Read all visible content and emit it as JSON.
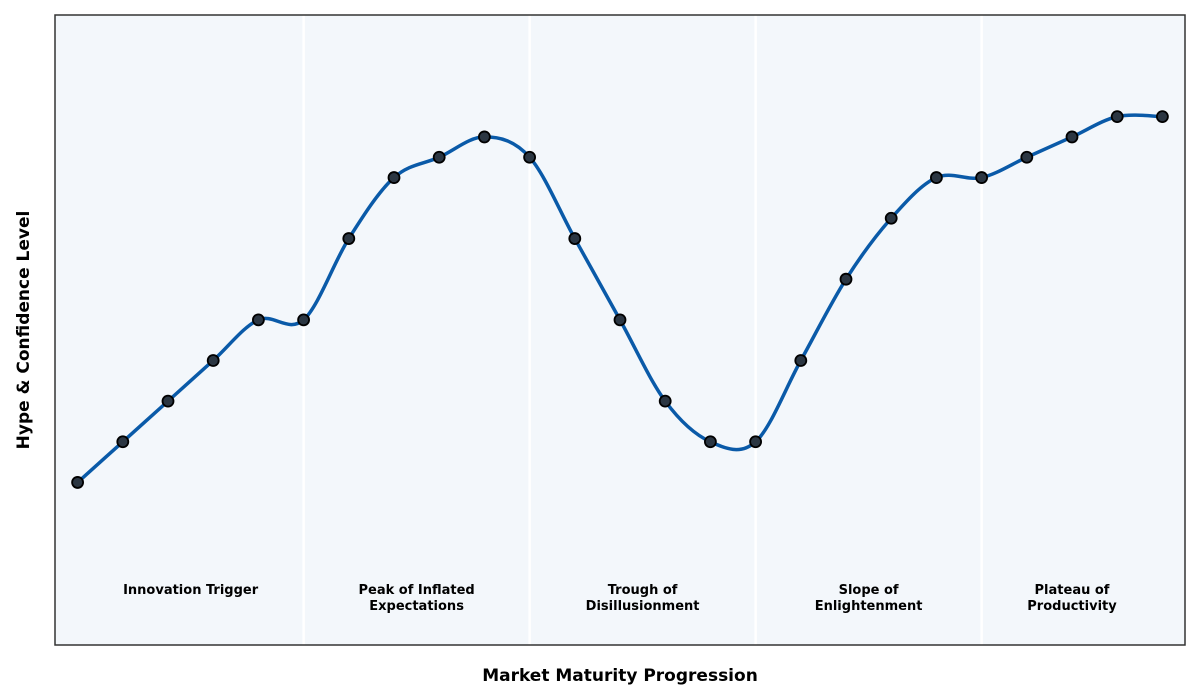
{
  "chart_data": {
    "type": "line",
    "title": "",
    "xlabel": "Market Maturity Progression",
    "ylabel": "Hype & Confidence Level",
    "grid": false,
    "xlim": [
      0.5,
      25.5
    ],
    "ylim": [
      0,
      31
    ],
    "x": [
      1,
      2,
      3,
      4,
      5,
      6,
      7,
      8,
      9,
      10,
      11,
      12,
      13,
      14,
      15,
      16,
      17,
      18,
      19,
      20,
      21,
      22,
      23,
      24,
      25
    ],
    "series": [
      {
        "values": [
          8,
          10,
          12,
          14,
          16,
          16,
          20,
          23,
          24,
          25,
          24,
          20,
          16,
          12,
          10,
          10,
          14,
          18,
          21,
          23,
          23,
          24,
          25,
          26,
          26
        ]
      }
    ],
    "phases": [
      {
        "label_lines": [
          "Innovation Trigger"
        ],
        "x_start": 0.5,
        "x_end": 6
      },
      {
        "label_lines": [
          "Peak of Inflated",
          "Expectations"
        ],
        "x_start": 6,
        "x_end": 11
      },
      {
        "label_lines": [
          "Trough of",
          "Disillusionment"
        ],
        "x_start": 11,
        "x_end": 16
      },
      {
        "label_lines": [
          "Slope of",
          "Enlightenment"
        ],
        "x_start": 16,
        "x_end": 21
      },
      {
        "label_lines": [
          "Plateau of",
          "Productivity"
        ],
        "x_start": 21,
        "x_end": 25.5
      }
    ],
    "phase_label_y": 2.5,
    "colors": {
      "line": "#0a5aa8",
      "marker_fill": "#2b3642",
      "marker_edge": "#000000",
      "plot_bg": "#f3f7fb",
      "phase_divider": "#ffffff",
      "frame": "#333333"
    }
  }
}
